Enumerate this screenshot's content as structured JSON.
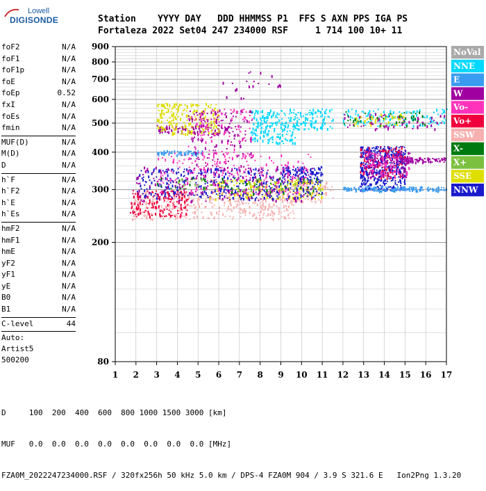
{
  "logo": {
    "line1": "Lowell",
    "line2": "DIGISONDE"
  },
  "header": {
    "line1": "Station    YYYY DAY   DDD HHMMSS P1  FFS S AXN PPS IGA PS",
    "line2": "Fortaleza 2022 Set04 247 234000 RSF     1 714 100 10+ 11"
  },
  "params": [
    {
      "group": [
        {
          "name": "foF2",
          "value": "N/A"
        },
        {
          "name": "foF1",
          "value": "N/A"
        },
        {
          "name": "foF1p",
          "value": "N/A"
        },
        {
          "name": "foE",
          "value": "N/A"
        },
        {
          "name": "foEp",
          "value": "0.52"
        },
        {
          "name": "fxI",
          "value": "N/A"
        },
        {
          "name": "foEs",
          "value": "N/A"
        },
        {
          "name": "fmin",
          "value": "N/A"
        }
      ]
    },
    {
      "group": [
        {
          "name": "MUF(D)",
          "value": "N/A"
        },
        {
          "name": "M(D)",
          "value": "N/A"
        },
        {
          "name": "D",
          "value": "N/A"
        }
      ]
    },
    {
      "group": [
        {
          "name": "h`F",
          "value": "N/A"
        },
        {
          "name": "h`F2",
          "value": "N/A"
        },
        {
          "name": "h`E",
          "value": "N/A"
        },
        {
          "name": "h`Es",
          "value": "N/A"
        }
      ]
    },
    {
      "group": [
        {
          "name": "hmF2",
          "value": "N/A"
        },
        {
          "name": "hmF1",
          "value": "N/A"
        },
        {
          "name": "hmE",
          "value": "N/A"
        },
        {
          "name": "yF2",
          "value": "N/A"
        },
        {
          "name": "yF1",
          "value": "N/A"
        },
        {
          "name": "yE",
          "value": "N/A"
        },
        {
          "name": "B0",
          "value": "N/A"
        },
        {
          "name": "B1",
          "value": "N/A"
        }
      ]
    },
    {
      "group": [
        {
          "name": "C-level",
          "value": "44"
        }
      ]
    }
  ],
  "auto": {
    "line1": "Auto:",
    "line2": "Artist5",
    "line3": "500200"
  },
  "bottom": {
    "d_line": "D     100  200  400  600  800 1000 1500 3000 [km]",
    "muf_line": "MUF   0.0  0.0  0.0  0.0  0.0  0.0  0.0  0.0 [MHz]",
    "file_line": "FZA0M_2022247234000.RSF / 320fx256h 50 kHz 5.0 km / DPS-4 FZA0M 904 / 3.9 S 321.6 E   Ion2Png 1.3.20"
  },
  "chart_data": {
    "type": "scatter",
    "x_ticks": [
      "1",
      "2",
      "3",
      "4",
      "5",
      "6",
      "7",
      "8",
      "9",
      "10",
      "11",
      "12",
      "13",
      "14",
      "15",
      "16",
      "17"
    ],
    "y_ticks": [
      "80",
      "200",
      "300",
      "400",
      "500",
      "600",
      "700",
      "800",
      "900"
    ],
    "xlim": [
      1,
      17
    ],
    "ylim_note": "log scale",
    "ylim": [
      80,
      900
    ],
    "grid": true,
    "legend_position": "right",
    "legend": [
      {
        "label": "NoVal",
        "color": "#a9a9a9",
        "text_color": "#ffffff"
      },
      {
        "label": "NNE",
        "color": "#00d8ff",
        "text_color": "#ffffff"
      },
      {
        "label": "E",
        "color": "#3a9cf0",
        "text_color": "#ffffff"
      },
      {
        "label": "W",
        "color": "#a000a0",
        "text_color": "#ffffff"
      },
      {
        "label": "Vo-",
        "color": "#ff33bb",
        "text_color": "#ffffff"
      },
      {
        "label": "Vo+",
        "color": "#f0003c",
        "text_color": "#ffffff"
      },
      {
        "label": "SSW",
        "color": "#f6b0b0",
        "text_color": "#ffffff"
      },
      {
        "label": "X-",
        "color": "#007a10",
        "text_color": "#ffffff"
      },
      {
        "label": "X+",
        "color": "#7cc040",
        "text_color": "#ffffff"
      },
      {
        "label": "SSE",
        "color": "#dede00",
        "text_color": "#ffffff"
      },
      {
        "label": "NNW",
        "color": "#1a1acc",
        "text_color": "#ffffff"
      }
    ],
    "clusters": [
      {
        "color": "#f6b0b0",
        "f": [
          1.8,
          9.8
        ],
        "h": [
          240,
          300
        ],
        "n": 420
      },
      {
        "color": "#f6b0b0",
        "f": [
          9.5,
          11.5
        ],
        "h": [
          275,
          320
        ],
        "n": 80
      },
      {
        "color": "#f0003c",
        "f": [
          1.7,
          4.5
        ],
        "h": [
          245,
          300
        ],
        "n": 160
      },
      {
        "color": "#dede00",
        "f": [
          5.5,
          11.0
        ],
        "h": [
          280,
          325
        ],
        "n": 220
      },
      {
        "color": "#1a1acc",
        "f": [
          2.0,
          11.0
        ],
        "h": [
          280,
          355
        ],
        "n": 380
      },
      {
        "color": "#a000a0",
        "f": [
          2.0,
          10.5
        ],
        "h": [
          275,
          360
        ],
        "n": 200
      },
      {
        "color": "#ff33bb",
        "f": [
          3.0,
          10.5
        ],
        "h": [
          290,
          400
        ],
        "n": 200
      },
      {
        "color": "#3a9cf0",
        "f": [
          3.0,
          5.2
        ],
        "h": [
          393,
          407
        ],
        "n": 60
      },
      {
        "color": "#a000a0",
        "f": [
          3.0,
          6.5
        ],
        "h": [
          465,
          495
        ],
        "n": 90
      },
      {
        "color": "#dede00",
        "f": [
          3.0,
          6.0
        ],
        "h": [
          460,
          585
        ],
        "n": 220
      },
      {
        "color": "#00d8ff",
        "f": [
          7.5,
          9.8
        ],
        "h": [
          430,
          560
        ],
        "n": 200
      },
      {
        "color": "#00d8ff",
        "f": [
          9.8,
          11.5
        ],
        "h": [
          475,
          560
        ],
        "n": 90
      },
      {
        "color": "#a000a0",
        "f": [
          4.5,
          7.6
        ],
        "h": [
          350,
          560
        ],
        "n": 160
      },
      {
        "color": "#ff33bb",
        "f": [
          4.5,
          7.6
        ],
        "h": [
          330,
          560
        ],
        "n": 120
      },
      {
        "color": "#1a1acc",
        "f": [
          12.8,
          15.0
        ],
        "h": [
          300,
          420
        ],
        "n": 420
      },
      {
        "color": "#f0003c",
        "f": [
          12.8,
          15.0
        ],
        "h": [
          330,
          420
        ],
        "n": 120
      },
      {
        "color": "#a000a0",
        "f": [
          13.0,
          15.2
        ],
        "h": [
          330,
          410
        ],
        "n": 120
      },
      {
        "color": "#ff33bb",
        "f": [
          13.0,
          15.2
        ],
        "h": [
          330,
          400
        ],
        "n": 80
      },
      {
        "color": "#3a9cf0",
        "f": [
          12.0,
          17.0
        ],
        "h": [
          298,
          308
        ],
        "n": 170
      },
      {
        "color": "#a000a0",
        "f": [
          14.5,
          17.0
        ],
        "h": [
          372,
          385
        ],
        "n": 80
      },
      {
        "color": "#00d8ff",
        "f": [
          12.0,
          17.0
        ],
        "h": [
          490,
          560
        ],
        "n": 120
      },
      {
        "color": "#dede00",
        "f": [
          12.5,
          15.0
        ],
        "h": [
          490,
          540
        ],
        "n": 50
      },
      {
        "color": "#a000a0",
        "f": [
          12.0,
          17.0
        ],
        "h": [
          480,
          540
        ],
        "n": 60
      },
      {
        "color": "#007a10",
        "f": [
          12.0,
          16.0
        ],
        "h": [
          490,
          550
        ],
        "n": 40
      },
      {
        "color": "#1a1acc",
        "f": [
          9.0,
          11.0
        ],
        "h": [
          320,
          360
        ],
        "n": 80
      },
      {
        "color": "#a000a0",
        "f": [
          6.0,
          9.0
        ],
        "h": [
          600,
          760
        ],
        "n": 20
      },
      {
        "color": "#007a10",
        "f": [
          3.0,
          11.0
        ],
        "h": [
          290,
          330
        ],
        "n": 60
      },
      {
        "color": "#7cc040",
        "f": [
          4.0,
          11.0
        ],
        "h": [
          300,
          330
        ],
        "n": 40
      }
    ]
  }
}
